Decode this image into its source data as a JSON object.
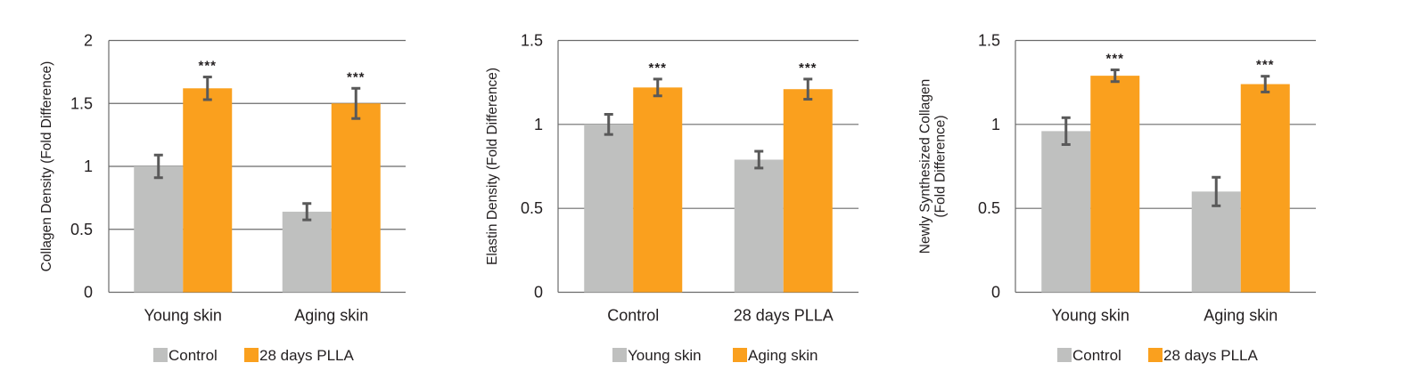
{
  "colors": {
    "series_gray": "#bfc0bf",
    "series_orange": "#faa01e",
    "grid": "#6b6b6b",
    "error_bar": "#595959"
  },
  "chart_data": [
    {
      "type": "bar",
      "title": "",
      "xlabel": "",
      "ylabel": "Collagen Density (Fold Difference)",
      "ylabel_lines": [
        "Collagen Density (Fold Difference)"
      ],
      "categories": [
        "Young skin",
        "Aging skin"
      ],
      "ylim": [
        0,
        2
      ],
      "yticks": [
        0,
        0.5,
        1,
        1.5,
        2
      ],
      "ytick_labels": [
        "0",
        "0.5",
        "1",
        "1.5",
        "2"
      ],
      "grid": true,
      "legend_position": "bottom",
      "series": [
        {
          "name": "Control",
          "color_key": "series_gray",
          "values": [
            1.0,
            0.64
          ],
          "errors": [
            0.09,
            0.065
          ]
        },
        {
          "name": "28 days PLLA",
          "color_key": "series_orange",
          "values": [
            1.62,
            1.5
          ],
          "errors": [
            0.09,
            0.12
          ]
        }
      ],
      "annotations": [
        {
          "series": 1,
          "category": 0,
          "text": "***"
        },
        {
          "series": 1,
          "category": 1,
          "text": "***"
        }
      ]
    },
    {
      "type": "bar",
      "title": "",
      "xlabel": "",
      "ylabel": "Elastin Density (Fold Difference)",
      "ylabel_lines": [
        "Elastin Density (Fold Difference)"
      ],
      "categories": [
        "Control",
        "28 days PLLA"
      ],
      "ylim": [
        0,
        1.5
      ],
      "yticks": [
        0,
        0.5,
        1,
        1.5
      ],
      "ytick_labels": [
        "0",
        "0.5",
        "1",
        "1.5"
      ],
      "grid": true,
      "legend_position": "bottom",
      "series": [
        {
          "name": "Young skin",
          "color_key": "series_gray",
          "values": [
            1.0,
            0.79
          ],
          "errors": [
            0.06,
            0.05
          ]
        },
        {
          "name": "Aging skin",
          "color_key": "series_orange",
          "values": [
            1.22,
            1.21
          ],
          "errors": [
            0.05,
            0.06
          ]
        }
      ],
      "annotations": [
        {
          "series": 1,
          "category": 0,
          "text": "***"
        },
        {
          "series": 1,
          "category": 1,
          "text": "***"
        }
      ]
    },
    {
      "type": "bar",
      "title": "",
      "xlabel": "",
      "ylabel": "Newly Synthesized Collagen (Fold Difference)",
      "ylabel_lines": [
        "Newly Synthesized Collagen",
        "(Fold Difference)"
      ],
      "categories": [
        "Young skin",
        "Aging skin"
      ],
      "ylim": [
        0,
        1.5
      ],
      "yticks": [
        0,
        0.5,
        1,
        1.5
      ],
      "ytick_labels": [
        "0",
        "0.5",
        "1",
        "1.5"
      ],
      "grid": true,
      "legend_position": "bottom",
      "series": [
        {
          "name": "Control",
          "color_key": "series_gray",
          "values": [
            0.96,
            0.6
          ],
          "errors": [
            0.08,
            0.085
          ]
        },
        {
          "name": "28 days PLLA",
          "color_key": "series_orange",
          "values": [
            1.29,
            1.24
          ],
          "errors": [
            0.035,
            0.047
          ]
        }
      ],
      "annotations": [
        {
          "series": 1,
          "category": 0,
          "text": "***"
        },
        {
          "series": 1,
          "category": 1,
          "text": "***"
        }
      ]
    }
  ]
}
